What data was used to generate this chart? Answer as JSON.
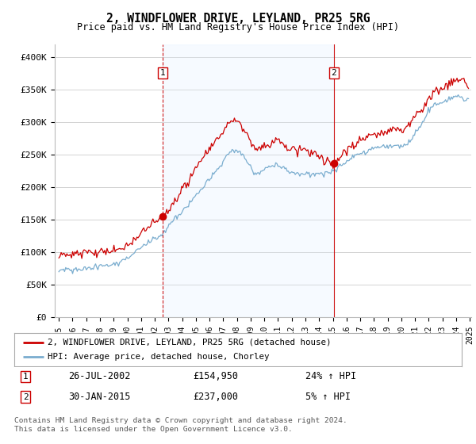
{
  "title": "2, WINDFLOWER DRIVE, LEYLAND, PR25 5RG",
  "subtitle": "Price paid vs. HM Land Registry's House Price Index (HPI)",
  "legend_line1": "2, WINDFLOWER DRIVE, LEYLAND, PR25 5RG (detached house)",
  "legend_line2": "HPI: Average price, detached house, Chorley",
  "annotation1_date": "26-JUL-2002",
  "annotation1_price": "£154,950",
  "annotation1_hpi": "24% ↑ HPI",
  "annotation2_date": "30-JAN-2015",
  "annotation2_price": "£237,000",
  "annotation2_hpi": "5% ↑ HPI",
  "footer": "Contains HM Land Registry data © Crown copyright and database right 2024.\nThis data is licensed under the Open Government Licence v3.0.",
  "line_red_color": "#cc0000",
  "line_blue_color": "#7aadcf",
  "shade_color": "#ddeeff",
  "annotation_color": "#cc0000",
  "background_color": "#ffffff",
  "ylim": [
    0,
    420000
  ],
  "yticks": [
    0,
    50000,
    100000,
    150000,
    200000,
    250000,
    300000,
    350000,
    400000
  ],
  "ytick_labels": [
    "£0",
    "£50K",
    "£100K",
    "£150K",
    "£200K",
    "£250K",
    "£300K",
    "£350K",
    "£400K"
  ],
  "sale1_x": 2002.57,
  "sale1_y": 154950,
  "sale2_x": 2015.08,
  "sale2_y": 237000,
  "xmin": 1995.0,
  "xmax": 2025.0
}
